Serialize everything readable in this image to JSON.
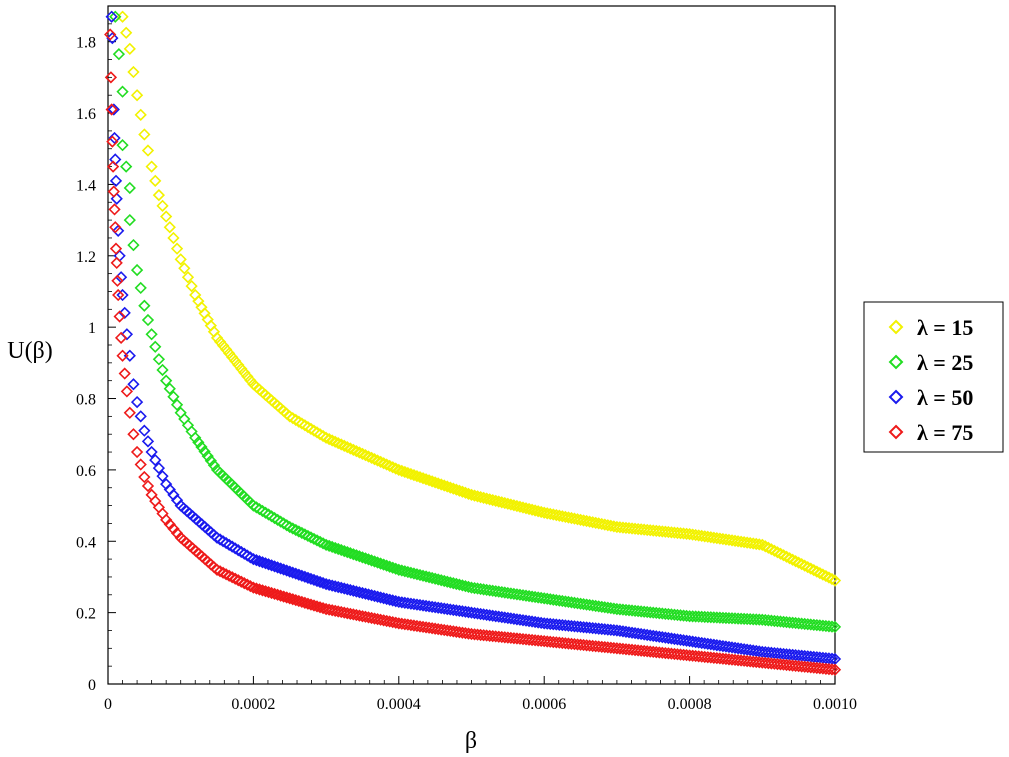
{
  "chart_data": {
    "type": "scatter",
    "title": "",
    "xlabel": "β",
    "ylabel": "U(β)",
    "xlim": [
      0,
      0.001
    ],
    "ylim": [
      0,
      1.9
    ],
    "x_ticks": [
      0,
      0.0002,
      0.0004,
      0.0006,
      0.0008,
      0.001
    ],
    "x_tick_labels": [
      "0",
      "0.0002",
      "0.0004",
      "0.0006",
      "0.0008",
      "0.0010"
    ],
    "y_ticks": [
      0,
      0.2,
      0.4,
      0.6,
      0.8,
      1,
      1.2,
      1.4,
      1.6,
      1.8
    ],
    "y_tick_labels": [
      "0",
      "0.2",
      "0.4",
      "0.6",
      "0.8",
      "1",
      "1.2",
      "1.4",
      "1.6",
      "1.8"
    ],
    "marker": "diamond",
    "legend_position": "outside-right",
    "series": [
      {
        "name": "λ = 15",
        "lambda": 15,
        "color": "#f2f200",
        "points": [
          [
            2e-05,
            1.87
          ],
          [
            3e-05,
            1.78
          ],
          [
            4e-05,
            1.65
          ],
          [
            5e-05,
            1.54
          ],
          [
            6e-05,
            1.45
          ],
          [
            7e-05,
            1.37
          ],
          [
            8e-05,
            1.31
          ],
          [
            9e-05,
            1.25
          ],
          [
            0.0001,
            1.19
          ],
          [
            0.00012,
            1.09
          ],
          [
            0.00015,
            0.97
          ],
          [
            0.0002,
            0.84
          ],
          [
            0.00025,
            0.75
          ],
          [
            0.0003,
            0.69
          ],
          [
            0.0004,
            0.6
          ],
          [
            0.0005,
            0.53
          ],
          [
            0.0006,
            0.48
          ],
          [
            0.0007,
            0.44
          ],
          [
            0.0008,
            0.42
          ],
          [
            0.0009,
            0.39
          ],
          [
            0.001,
            0.29
          ]
        ]
      },
      {
        "name": "λ = 25",
        "lambda": 25,
        "color": "#22dd22",
        "points": [
          [
            1e-05,
            1.87
          ],
          [
            2e-05,
            1.66
          ],
          [
            2e-05,
            1.51
          ],
          [
            3e-05,
            1.39
          ],
          [
            3e-05,
            1.3
          ],
          [
            4e-05,
            1.16
          ],
          [
            5e-05,
            1.06
          ],
          [
            6e-05,
            0.98
          ],
          [
            7e-05,
            0.91
          ],
          [
            8e-05,
            0.85
          ],
          [
            0.0001,
            0.76
          ],
          [
            0.00012,
            0.69
          ],
          [
            0.00015,
            0.6
          ],
          [
            0.0002,
            0.5
          ],
          [
            0.00025,
            0.44
          ],
          [
            0.0003,
            0.39
          ],
          [
            0.0004,
            0.32
          ],
          [
            0.0005,
            0.27
          ],
          [
            0.0006,
            0.24
          ],
          [
            0.0007,
            0.21
          ],
          [
            0.0008,
            0.19
          ],
          [
            0.0009,
            0.18
          ],
          [
            0.001,
            0.16
          ]
        ]
      },
      {
        "name": "λ = 50",
        "lambda": 50,
        "color": "#1a1aee",
        "points": [
          [
            5e-06,
            1.87
          ],
          [
            6e-06,
            1.81
          ],
          [
            8e-06,
            1.61
          ],
          [
            9e-06,
            1.53
          ],
          [
            1e-05,
            1.47
          ],
          [
            1.1e-05,
            1.41
          ],
          [
            1.2e-05,
            1.36
          ],
          [
            1.4e-05,
            1.27
          ],
          [
            1.6e-05,
            1.2
          ],
          [
            1.8e-05,
            1.14
          ],
          [
            2e-05,
            1.09
          ],
          [
            2.3e-05,
            1.04
          ],
          [
            2.6e-05,
            0.98
          ],
          [
            3e-05,
            0.92
          ],
          [
            3.5e-05,
            0.84
          ],
          [
            4e-05,
            0.79
          ],
          [
            5e-05,
            0.71
          ],
          [
            6e-05,
            0.65
          ],
          [
            8e-05,
            0.56
          ],
          [
            0.0001,
            0.5
          ],
          [
            0.00015,
            0.41
          ],
          [
            0.0002,
            0.35
          ],
          [
            0.0003,
            0.28
          ],
          [
            0.0004,
            0.23
          ],
          [
            0.0005,
            0.2
          ],
          [
            0.0006,
            0.17
          ],
          [
            0.0007,
            0.15
          ],
          [
            0.0008,
            0.12
          ],
          [
            0.0009,
            0.09
          ],
          [
            0.001,
            0.07
          ]
        ]
      },
      {
        "name": "λ = 75",
        "lambda": 75,
        "color": "#ee1a1a",
        "points": [
          [
            3e-06,
            1.82
          ],
          [
            4e-06,
            1.7
          ],
          [
            5e-06,
            1.61
          ],
          [
            6e-06,
            1.52
          ],
          [
            7e-06,
            1.45
          ],
          [
            8e-06,
            1.38
          ],
          [
            9e-06,
            1.33
          ],
          [
            1e-05,
            1.28
          ],
          [
            1.1e-05,
            1.22
          ],
          [
            1.2e-05,
            1.18
          ],
          [
            1.3e-05,
            1.13
          ],
          [
            1.4e-05,
            1.09
          ],
          [
            1.6e-05,
            1.03
          ],
          [
            1.8e-05,
            0.97
          ],
          [
            2e-05,
            0.92
          ],
          [
            2.3e-05,
            0.87
          ],
          [
            2.6e-05,
            0.82
          ],
          [
            3e-05,
            0.76
          ],
          [
            3.5e-05,
            0.7
          ],
          [
            4e-05,
            0.65
          ],
          [
            5e-05,
            0.58
          ],
          [
            6e-05,
            0.53
          ],
          [
            8e-05,
            0.46
          ],
          [
            0.0001,
            0.41
          ],
          [
            0.00015,
            0.32
          ],
          [
            0.0002,
            0.27
          ],
          [
            0.0003,
            0.21
          ],
          [
            0.0004,
            0.17
          ],
          [
            0.0005,
            0.14
          ],
          [
            0.0006,
            0.12
          ],
          [
            0.0007,
            0.1
          ],
          [
            0.0008,
            0.08
          ],
          [
            0.0009,
            0.06
          ],
          [
            0.001,
            0.04
          ]
        ]
      }
    ]
  }
}
